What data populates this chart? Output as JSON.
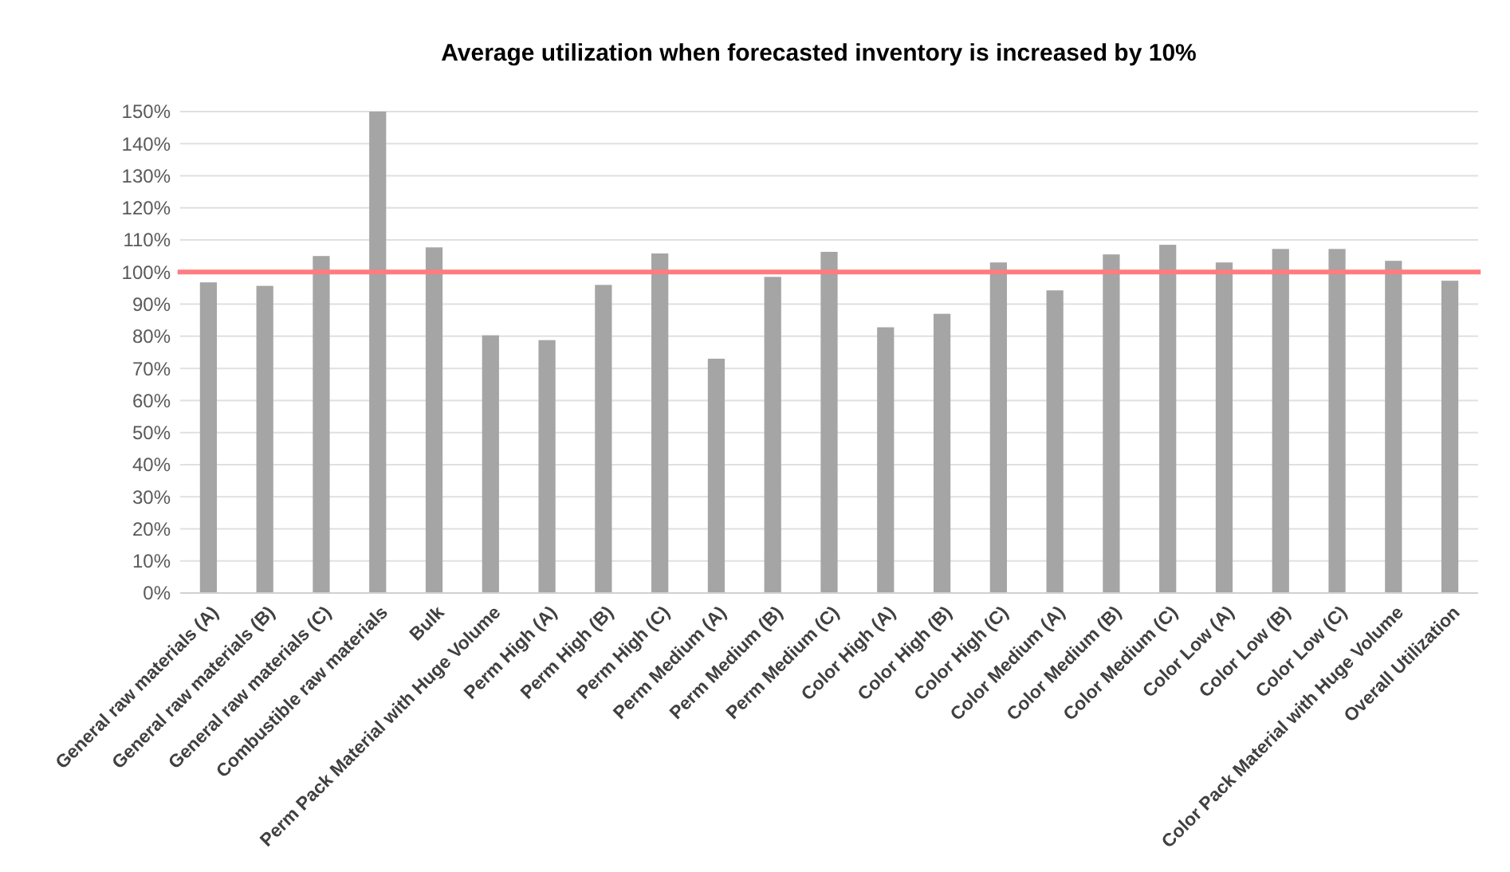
{
  "chart_data": {
    "type": "bar",
    "title": "Average utilization when forecasted inventory is increased by 10%",
    "categories": [
      "General raw materials (A)",
      "General raw materials (B)",
      "General raw materials (C)",
      "Combustible raw materials",
      "Bulk",
      "Perm Pack Material with Huge Volume",
      "Perm High (A)",
      "Perm High (B)",
      "Perm High (C)",
      "Perm Medium (A)",
      "Perm Medium (B)",
      "Perm Medium (C)",
      "Color High (A)",
      "Color High (B)",
      "Color High (C)",
      "Color Medium (A)",
      "Color Medium (B)",
      "Color Medium (C)",
      "Color Low (A)",
      "Color Low (B)",
      "Color Low (C)",
      "Color Pack Material with Huge Volume",
      "Overall Utilization"
    ],
    "values": [
      96.8,
      95.7,
      105,
      150,
      107.7,
      80.3,
      78.8,
      96,
      105.8,
      73,
      98.5,
      106.3,
      82.8,
      87,
      103,
      94.3,
      105.5,
      108.5,
      103,
      107.2,
      107.2,
      103.5,
      97.3
    ],
    "color": "#a5a5a5",
    "ylim": [
      0,
      150
    ],
    "yticks": [
      {
        "value": 0,
        "label": "0%"
      },
      {
        "value": 10,
        "label": "10%"
      },
      {
        "value": 20,
        "label": "20%"
      },
      {
        "value": 30,
        "label": "30%"
      },
      {
        "value": 40,
        "label": "40%"
      },
      {
        "value": 50,
        "label": "50%"
      },
      {
        "value": 60,
        "label": "60%"
      },
      {
        "value": 70,
        "label": "70%"
      },
      {
        "value": 80,
        "label": "80%"
      },
      {
        "value": 90,
        "label": "90%"
      },
      {
        "value": 100,
        "label": "100%"
      },
      {
        "value": 110,
        "label": "110%"
      },
      {
        "value": 120,
        "label": "120%"
      },
      {
        "value": 130,
        "label": "130%"
      },
      {
        "value": 140,
        "label": "140%"
      },
      {
        "value": 150,
        "label": "150%"
      }
    ],
    "grid": "y",
    "ref_lines": [
      {
        "axis": "y",
        "value": 100,
        "color": "#ff7c80"
      }
    ]
  }
}
